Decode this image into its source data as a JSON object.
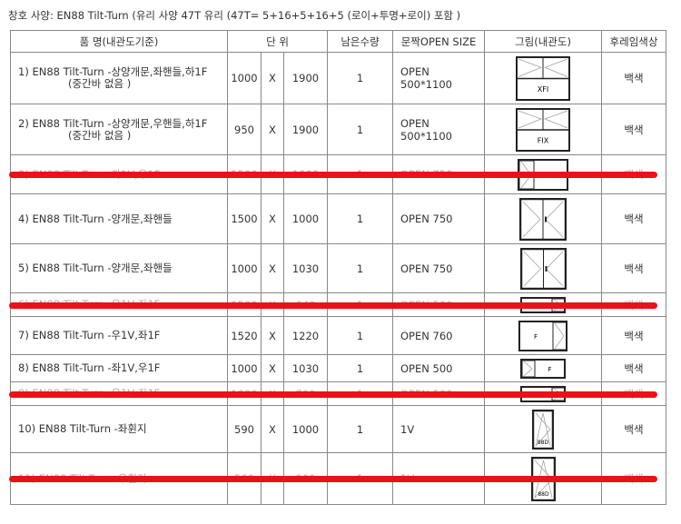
{
  "title": "창호 사양: EN88 Tilt-Turn (유리 사양 47T 유리 (47T= 5+16+5+16+5 (로이+투명+로이) 포함 )",
  "headers": {
    "name": "품  명(내관도기준)",
    "unit": "단  위",
    "qty": "남은수량",
    "open": "문짝OPEN SIZE",
    "drawing": "그림(내관도)",
    "color": "후레임색상"
  },
  "rows": [
    {
      "name": "1) EN88 Tilt-Turn -상양개문,좌핸들,하1F",
      "sub": "(중간바 없음 )",
      "w": "1000",
      "x": "X",
      "h": "1900",
      "qty": "1",
      "open": "OPEN 500*1100",
      "color": "백색",
      "drawing": "double-tilt-over-fix",
      "label": "XFI",
      "struck": false
    },
    {
      "name": "2) EN88 Tilt-Turn -상양개문,우핸들,하1F",
      "sub": "(중간바 없음 )",
      "w": "950",
      "x": "X",
      "h": "1900",
      "qty": "1",
      "open": "OPEN 500*1100",
      "color": "백색",
      "drawing": "double-tilt-over-fix",
      "label": "FIX",
      "struck": false
    },
    {
      "name": "3) EN88 Tilt-Turn -좌1V,우1F",
      "sub": "",
      "w": "1500",
      "x": "X",
      "h": "1000",
      "qty": "1",
      "open": "OPEN 750",
      "color": "백색",
      "drawing": "left-vent-right-fix",
      "label": "",
      "struck": true
    },
    {
      "name": "4) EN88 Tilt-Turn -양개문,좌핸들",
      "sub": "",
      "w": "1500",
      "x": "X",
      "h": "1000",
      "qty": "1",
      "open": "OPEN 750",
      "color": "백색",
      "drawing": "double-casement",
      "label": "",
      "struck": false
    },
    {
      "name": "5) EN88 Tilt-Turn -양개문,좌핸들",
      "sub": "",
      "w": "1000",
      "x": "X",
      "h": "1030",
      "qty": "1",
      "open": "OPEN 750",
      "color": "백색",
      "drawing": "double-casement",
      "label": "",
      "struck": false
    },
    {
      "name": "6) EN88 Tilt-Turn -우1V,좌1F",
      "sub": "",
      "w": "1500",
      "x": "X",
      "h": "640",
      "qty": "1",
      "open": "OPEN 500",
      "color": "백색",
      "drawing": "left-fix-right-vent",
      "label": "",
      "struck": true
    },
    {
      "name": "7) EN88 Tilt-Turn -우1V,좌1F",
      "sub": "",
      "w": "1520",
      "x": "X",
      "h": "1220",
      "qty": "1",
      "open": "OPEN 760",
      "color": "백색",
      "drawing": "left-fix-right-vent",
      "label": "F",
      "struck": false
    },
    {
      "name": "8) EN88 Tilt-Turn -좌1V,우1F",
      "sub": "",
      "w": "1000",
      "x": "X",
      "h": "1030",
      "qty": "1",
      "open": "OPEN 500",
      "color": "백색",
      "drawing": "left-vent-right-fix",
      "label": "F",
      "struck": false
    },
    {
      "name": "9) EN88 Tilt-Turn -우1V,좌1F",
      "sub": "",
      "w": "1000",
      "x": "X",
      "h": "700",
      "qty": "1",
      "open": "OPEN 500",
      "color": "백색",
      "drawing": "left-fix-right-vent",
      "label": "",
      "struck": true
    },
    {
      "name": "10) EN88 Tilt-Turn -좌휜지",
      "sub": "",
      "w": "590",
      "x": "X",
      "h": "1000",
      "qty": "1",
      "open": "1V",
      "color": "백색",
      "drawing": "single-vent",
      "label": "88D",
      "struck": false
    },
    {
      "name": "11) EN88 Tilt-Turn -우휜지",
      "sub": "",
      "w": "560",
      "x": "X",
      "h": "900",
      "qty": "1",
      "open": "1V",
      "color": "백색",
      "drawing": "single-vent",
      "label": "88D",
      "struck": true
    }
  ],
  "colors": {
    "strike": "#e8121a"
  }
}
